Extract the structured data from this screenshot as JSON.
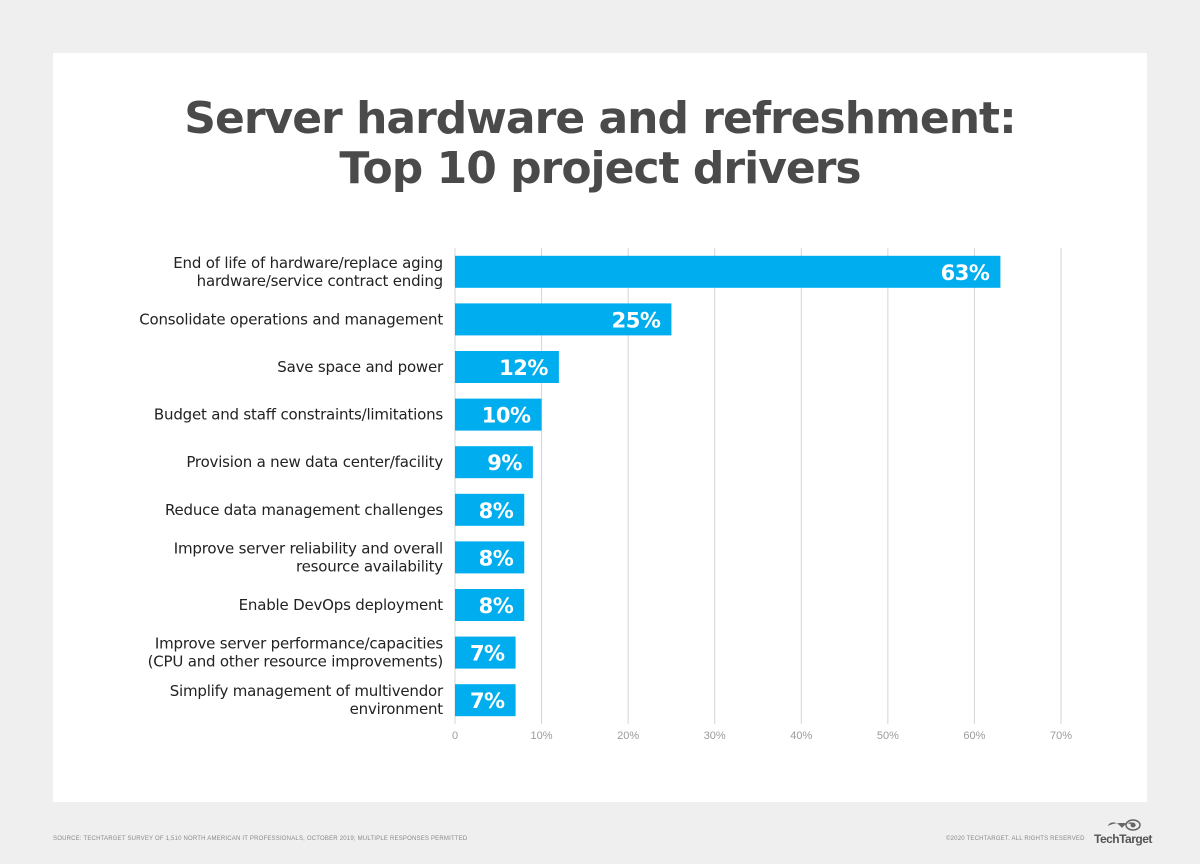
{
  "title_line1": "Server hardware and refreshment:",
  "title_line2": "Top 10 project drivers",
  "chart_data": {
    "type": "bar",
    "orientation": "horizontal",
    "categories": [
      [
        "End of life of hardware/replace aging",
        "hardware/service contract ending"
      ],
      [
        "Consolidate operations and management"
      ],
      [
        "Save space and power"
      ],
      [
        "Budget and staff constraints/limitations"
      ],
      [
        "Provision a new data center/facility"
      ],
      [
        "Reduce data management challenges"
      ],
      [
        "Improve server reliability and overall",
        "resource availability"
      ],
      [
        "Enable DevOps deployment"
      ],
      [
        "Improve server performance/capacities",
        "(CPU and other resource improvements)"
      ],
      [
        "Simplify management of multivendor",
        "environment"
      ]
    ],
    "values": [
      63,
      25,
      12,
      10,
      9,
      8,
      8,
      8,
      7,
      7
    ],
    "value_labels": [
      "63%",
      "25%",
      "12%",
      "10%",
      "9%",
      "8%",
      "8%",
      "8%",
      "7%",
      "7%"
    ],
    "xlim": [
      0,
      70
    ],
    "x_ticks": [
      0,
      10,
      20,
      30,
      40,
      50,
      60,
      70
    ],
    "x_tick_labels": [
      "0",
      "10%",
      "20%",
      "30%",
      "40%",
      "50%",
      "60%",
      "70%"
    ],
    "grid": true,
    "bar_color": "#00aeef",
    "label_color": "#ffffff"
  },
  "footer": {
    "source": "SOURCE: TECHTARGET SURVEY OF 1,510 NORTH AMERICAN IT PROFESSIONALS, OCTOBER 2019; MULTIPLE RESPONSES PERMITTED",
    "copyright": "©2020 TECHTARGET. ALL RIGHTS RESERVED",
    "logo": "TechTarget"
  },
  "icons": {
    "logo": "techtarget-eye-icon"
  }
}
